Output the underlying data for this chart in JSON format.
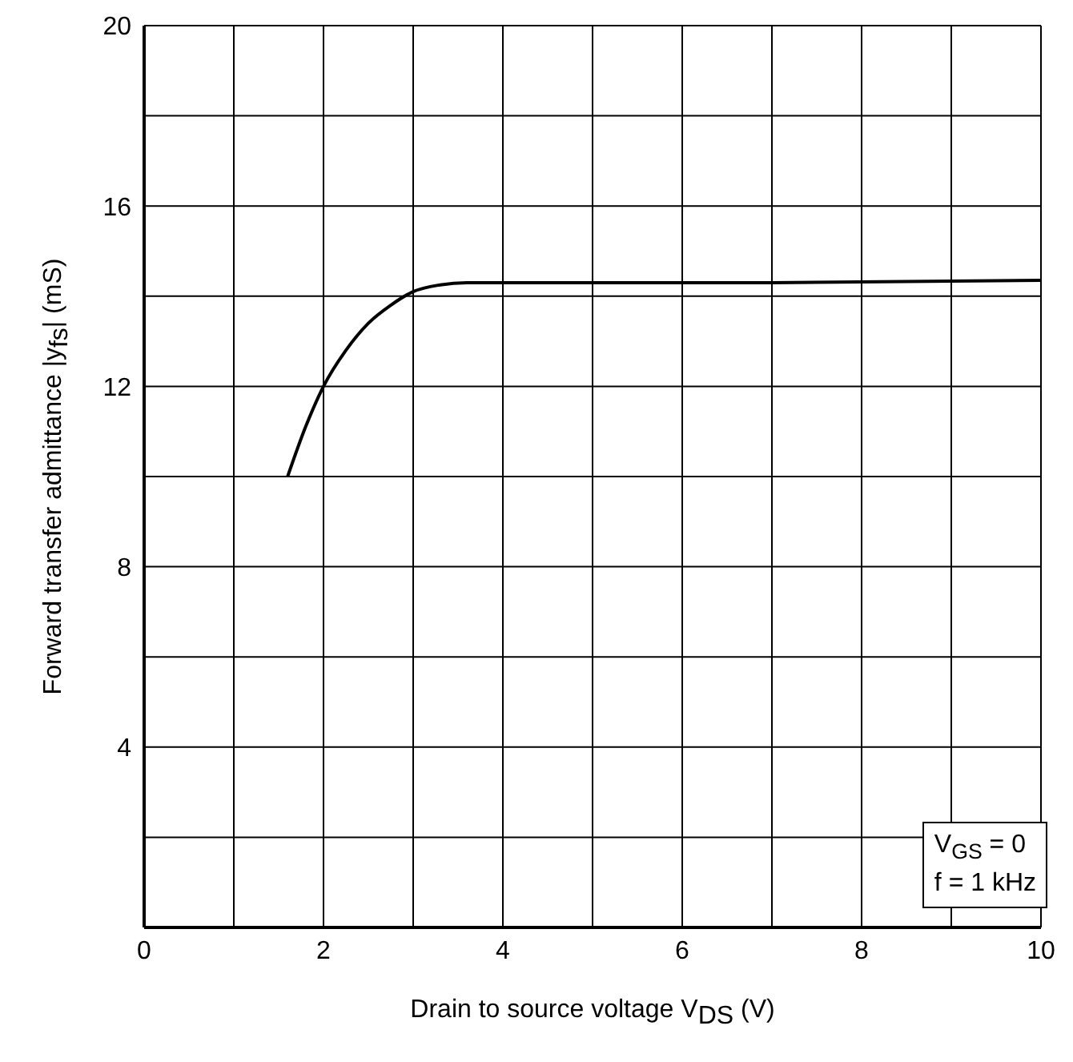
{
  "chart_data": {
    "type": "line",
    "xlabel": "Drain to source voltage V$_{DS}$   (V)",
    "ylabel": "Forward transfer admittance |y$_{fs}$| (mS)",
    "annotations": [
      "V$_{GS}$ = 0\nf = 1 kHz"
    ],
    "x": [
      1.6,
      1.8,
      2.0,
      2.25,
      2.5,
      2.75,
      3.0,
      3.3,
      3.6,
      5,
      7,
      10
    ],
    "series": [
      {
        "color": "#000000",
        "values": [
          10,
          11.1,
          12.0,
          12.8,
          13.4,
          13.8,
          14.1,
          14.25,
          14.3,
          14.3,
          14.3,
          14.35
        ]
      }
    ],
    "xlim": [
      0,
      10
    ],
    "ylim": [
      0,
      20
    ],
    "xticks": [
      0,
      {
        "value": 1,
        "label": null
      },
      2,
      {
        "value": 3,
        "label": null
      },
      4,
      {
        "value": 5,
        "label": null
      },
      6,
      {
        "value": 7,
        "label": null
      },
      8,
      {
        "value": 9,
        "label": null
      },
      10
    ],
    "yticks": [
      {
        "value": 0,
        "label": null
      },
      {
        "value": 2,
        "label": null
      },
      4,
      {
        "value": 6,
        "label": null
      },
      8,
      {
        "value": 10,
        "label": null
      },
      12,
      {
        "value": 14,
        "label": null
      },
      16,
      {
        "value": 18,
        "label": null
      },
      20
    ],
    "grid": true,
    "marker": "none",
    "line_style": "solid"
  }
}
